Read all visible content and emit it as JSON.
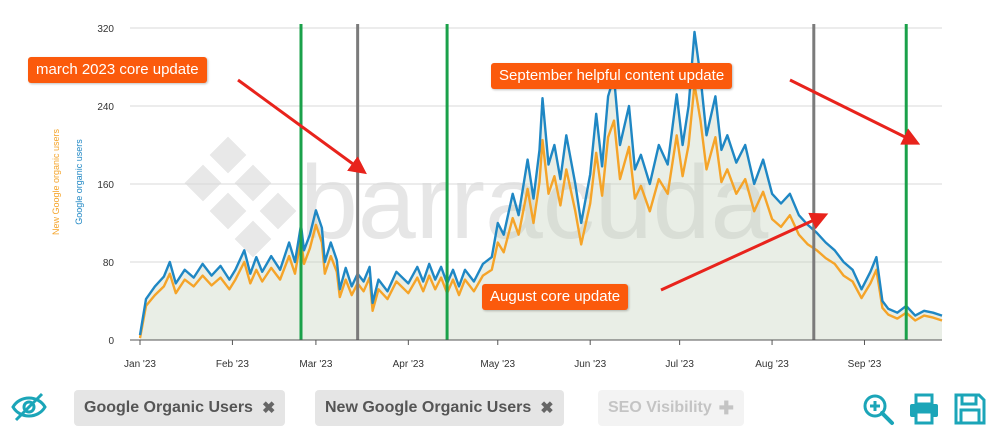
{
  "chart_data": {
    "type": "area",
    "title": "",
    "watermark": "barracuda",
    "x_ticks": [
      "Jan '23",
      "Feb '23",
      "Mar '23",
      "Apr '23",
      "May '23",
      "Jun '23",
      "Jul '23",
      "Aug '23",
      "Sep '23"
    ],
    "y_ticks": [
      "320",
      "240",
      "160",
      "80",
      "0"
    ],
    "ylim": [
      0,
      320
    ],
    "x_start": "2023-01-01",
    "x_end": "2023-09-27",
    "grid": true,
    "series": [
      {
        "name": "Google organic users",
        "color": "#1f87c4",
        "points": [
          [
            "2023-01-01",
            5
          ],
          [
            "2023-01-03",
            42
          ],
          [
            "2023-01-06",
            55
          ],
          [
            "2023-01-09",
            65
          ],
          [
            "2023-01-11",
            80
          ],
          [
            "2023-01-13",
            58
          ],
          [
            "2023-01-16",
            72
          ],
          [
            "2023-01-19",
            64
          ],
          [
            "2023-01-22",
            78
          ],
          [
            "2023-01-25",
            66
          ],
          [
            "2023-01-28",
            76
          ],
          [
            "2023-01-31",
            62
          ],
          [
            "2023-02-02",
            72
          ],
          [
            "2023-02-05",
            92
          ],
          [
            "2023-02-07",
            68
          ],
          [
            "2023-02-09",
            85
          ],
          [
            "2023-02-11",
            70
          ],
          [
            "2023-02-14",
            86
          ],
          [
            "2023-02-17",
            72
          ],
          [
            "2023-02-20",
            100
          ],
          [
            "2023-02-22",
            80
          ],
          [
            "2023-02-24",
            118
          ],
          [
            "2023-02-25",
            92
          ],
          [
            "2023-02-27",
            108
          ],
          [
            "2023-03-01",
            133
          ],
          [
            "2023-03-03",
            115
          ],
          [
            "2023-03-04",
            80
          ],
          [
            "2023-03-06",
            100
          ],
          [
            "2023-03-08",
            82
          ],
          [
            "2023-03-09",
            52
          ],
          [
            "2023-03-11",
            74
          ],
          [
            "2023-03-13",
            55
          ],
          [
            "2023-03-15",
            68
          ],
          [
            "2023-03-17",
            60
          ],
          [
            "2023-03-19",
            75
          ],
          [
            "2023-03-20",
            38
          ],
          [
            "2023-03-22",
            62
          ],
          [
            "2023-03-25",
            50
          ],
          [
            "2023-03-28",
            70
          ],
          [
            "2023-04-01",
            58
          ],
          [
            "2023-04-04",
            75
          ],
          [
            "2023-04-06",
            60
          ],
          [
            "2023-04-08",
            78
          ],
          [
            "2023-04-10",
            62
          ],
          [
            "2023-04-12",
            75
          ],
          [
            "2023-04-14",
            58
          ],
          [
            "2023-04-16",
            72
          ],
          [
            "2023-04-18",
            55
          ],
          [
            "2023-04-20",
            72
          ],
          [
            "2023-04-23",
            60
          ],
          [
            "2023-04-26",
            78
          ],
          [
            "2023-04-29",
            85
          ],
          [
            "2023-05-01",
            120
          ],
          [
            "2023-05-03",
            108
          ],
          [
            "2023-05-06",
            150
          ],
          [
            "2023-05-08",
            128
          ],
          [
            "2023-05-11",
            185
          ],
          [
            "2023-05-13",
            145
          ],
          [
            "2023-05-15",
            195
          ],
          [
            "2023-05-16",
            248
          ],
          [
            "2023-05-18",
            180
          ],
          [
            "2023-05-20",
            200
          ],
          [
            "2023-05-22",
            165
          ],
          [
            "2023-05-24",
            210
          ],
          [
            "2023-05-27",
            160
          ],
          [
            "2023-05-29",
            120
          ],
          [
            "2023-06-01",
            170
          ],
          [
            "2023-06-03",
            232
          ],
          [
            "2023-06-05",
            178
          ],
          [
            "2023-06-07",
            250
          ],
          [
            "2023-06-09",
            270
          ],
          [
            "2023-06-11",
            200
          ],
          [
            "2023-06-14",
            240
          ],
          [
            "2023-06-16",
            175
          ],
          [
            "2023-06-18",
            190
          ],
          [
            "2023-06-21",
            160
          ],
          [
            "2023-06-24",
            200
          ],
          [
            "2023-06-27",
            180
          ],
          [
            "2023-06-30",
            252
          ],
          [
            "2023-07-02",
            200
          ],
          [
            "2023-07-04",
            240
          ],
          [
            "2023-07-06",
            316
          ],
          [
            "2023-07-08",
            270
          ],
          [
            "2023-07-10",
            210
          ],
          [
            "2023-07-13",
            250
          ],
          [
            "2023-07-15",
            195
          ],
          [
            "2023-07-17",
            210
          ],
          [
            "2023-07-20",
            182
          ],
          [
            "2023-07-23",
            200
          ],
          [
            "2023-07-26",
            160
          ],
          [
            "2023-07-29",
            185
          ],
          [
            "2023-08-01",
            150
          ],
          [
            "2023-08-04",
            140
          ],
          [
            "2023-08-07",
            150
          ],
          [
            "2023-08-10",
            128
          ],
          [
            "2023-08-13",
            118
          ],
          [
            "2023-08-16",
            110
          ],
          [
            "2023-08-19",
            100
          ],
          [
            "2023-08-22",
            92
          ],
          [
            "2023-08-25",
            80
          ],
          [
            "2023-08-28",
            72
          ],
          [
            "2023-08-31",
            52
          ],
          [
            "2023-09-03",
            70
          ],
          [
            "2023-09-05",
            85
          ],
          [
            "2023-09-07",
            40
          ],
          [
            "2023-09-09",
            32
          ],
          [
            "2023-09-12",
            28
          ],
          [
            "2023-09-15",
            35
          ],
          [
            "2023-09-18",
            25
          ],
          [
            "2023-09-21",
            30
          ],
          [
            "2023-09-24",
            28
          ],
          [
            "2023-09-27",
            25
          ]
        ]
      },
      {
        "name": "New Google organic users",
        "color": "#f5a429",
        "points": [
          [
            "2023-01-01",
            2
          ],
          [
            "2023-01-03",
            35
          ],
          [
            "2023-01-06",
            46
          ],
          [
            "2023-01-09",
            55
          ],
          [
            "2023-01-11",
            68
          ],
          [
            "2023-01-13",
            48
          ],
          [
            "2023-01-16",
            62
          ],
          [
            "2023-01-19",
            55
          ],
          [
            "2023-01-22",
            66
          ],
          [
            "2023-01-25",
            56
          ],
          [
            "2023-01-28",
            64
          ],
          [
            "2023-01-31",
            52
          ],
          [
            "2023-02-02",
            62
          ],
          [
            "2023-02-05",
            80
          ],
          [
            "2023-02-07",
            58
          ],
          [
            "2023-02-09",
            72
          ],
          [
            "2023-02-11",
            60
          ],
          [
            "2023-02-14",
            74
          ],
          [
            "2023-02-17",
            62
          ],
          [
            "2023-02-20",
            86
          ],
          [
            "2023-02-22",
            68
          ],
          [
            "2023-02-24",
            104
          ],
          [
            "2023-02-25",
            78
          ],
          [
            "2023-02-27",
            94
          ],
          [
            "2023-03-01",
            118
          ],
          [
            "2023-03-03",
            100
          ],
          [
            "2023-03-04",
            68
          ],
          [
            "2023-03-06",
            86
          ],
          [
            "2023-03-08",
            70
          ],
          [
            "2023-03-09",
            44
          ],
          [
            "2023-03-11",
            62
          ],
          [
            "2023-03-13",
            46
          ],
          [
            "2023-03-15",
            58
          ],
          [
            "2023-03-17",
            50
          ],
          [
            "2023-03-19",
            64
          ],
          [
            "2023-03-20",
            30
          ],
          [
            "2023-03-22",
            52
          ],
          [
            "2023-03-25",
            42
          ],
          [
            "2023-03-28",
            60
          ],
          [
            "2023-04-01",
            48
          ],
          [
            "2023-04-04",
            64
          ],
          [
            "2023-04-06",
            50
          ],
          [
            "2023-04-08",
            66
          ],
          [
            "2023-04-10",
            52
          ],
          [
            "2023-04-12",
            64
          ],
          [
            "2023-04-14",
            48
          ],
          [
            "2023-04-16",
            62
          ],
          [
            "2023-04-18",
            46
          ],
          [
            "2023-04-20",
            62
          ],
          [
            "2023-04-23",
            50
          ],
          [
            "2023-04-26",
            66
          ],
          [
            "2023-04-29",
            72
          ],
          [
            "2023-05-01",
            100
          ],
          [
            "2023-05-03",
            90
          ],
          [
            "2023-05-06",
            125
          ],
          [
            "2023-05-08",
            108
          ],
          [
            "2023-05-11",
            155
          ],
          [
            "2023-05-13",
            120
          ],
          [
            "2023-05-15",
            162
          ],
          [
            "2023-05-16",
            205
          ],
          [
            "2023-05-18",
            150
          ],
          [
            "2023-05-20",
            168
          ],
          [
            "2023-05-22",
            138
          ],
          [
            "2023-05-24",
            175
          ],
          [
            "2023-05-27",
            132
          ],
          [
            "2023-05-29",
            98
          ],
          [
            "2023-06-01",
            140
          ],
          [
            "2023-06-03",
            192
          ],
          [
            "2023-06-05",
            148
          ],
          [
            "2023-06-07",
            208
          ],
          [
            "2023-06-09",
            225
          ],
          [
            "2023-06-11",
            165
          ],
          [
            "2023-06-14",
            198
          ],
          [
            "2023-06-16",
            145
          ],
          [
            "2023-06-18",
            158
          ],
          [
            "2023-06-21",
            132
          ],
          [
            "2023-06-24",
            165
          ],
          [
            "2023-06-27",
            150
          ],
          [
            "2023-06-30",
            210
          ],
          [
            "2023-07-02",
            168
          ],
          [
            "2023-07-04",
            200
          ],
          [
            "2023-07-06",
            262
          ],
          [
            "2023-07-08",
            225
          ],
          [
            "2023-07-10",
            175
          ],
          [
            "2023-07-13",
            208
          ],
          [
            "2023-07-15",
            162
          ],
          [
            "2023-07-17",
            175
          ],
          [
            "2023-07-20",
            150
          ],
          [
            "2023-07-23",
            165
          ],
          [
            "2023-07-26",
            132
          ],
          [
            "2023-07-29",
            152
          ],
          [
            "2023-08-01",
            124
          ],
          [
            "2023-08-04",
            116
          ],
          [
            "2023-08-07",
            128
          ],
          [
            "2023-08-10",
            108
          ],
          [
            "2023-08-13",
            98
          ],
          [
            "2023-08-16",
            92
          ],
          [
            "2023-08-19",
            84
          ],
          [
            "2023-08-22",
            78
          ],
          [
            "2023-08-25",
            66
          ],
          [
            "2023-08-28",
            60
          ],
          [
            "2023-08-31",
            43
          ],
          [
            "2023-09-03",
            58
          ],
          [
            "2023-09-05",
            72
          ],
          [
            "2023-09-07",
            33
          ],
          [
            "2023-09-09",
            26
          ],
          [
            "2023-09-12",
            22
          ],
          [
            "2023-09-15",
            28
          ],
          [
            "2023-09-18",
            20
          ],
          [
            "2023-09-21",
            25
          ],
          [
            "2023-09-24",
            23
          ],
          [
            "2023-09-27",
            20
          ]
        ]
      }
    ],
    "vertical_markers": [
      {
        "date": "2023-02-24",
        "color": "#1aa14a"
      },
      {
        "date": "2023-03-15",
        "color": "#7b7b7b"
      },
      {
        "date": "2023-04-14",
        "color": "#1aa14a"
      },
      {
        "date": "2023-08-15",
        "color": "#7b7b7b"
      },
      {
        "date": "2023-09-15",
        "color": "#1aa14a"
      }
    ],
    "y_axis_titles": [
      {
        "text": "New Google organic users",
        "color": "#f5a429"
      },
      {
        "text": "Google organic users",
        "color": "#1f87c4"
      }
    ],
    "annotations": [
      {
        "id": "march",
        "text": "march 2023 core update"
      },
      {
        "id": "september",
        "text": "September helpful content update"
      },
      {
        "id": "august",
        "text": "August core update"
      }
    ],
    "annotation_color": "#fb5a0c",
    "arrow_color": "#e8231c"
  },
  "toolbar": {
    "chips": [
      {
        "label": "Google Organic Users",
        "action": "remove"
      },
      {
        "label": "New Google Organic Users",
        "action": "remove"
      },
      {
        "label": "SEO Visibility",
        "action": "add"
      }
    ],
    "icons": [
      "hide-eye-icon",
      "zoom-in-icon",
      "print-icon",
      "save-icon"
    ],
    "icon_color": "#1ba5b8"
  }
}
